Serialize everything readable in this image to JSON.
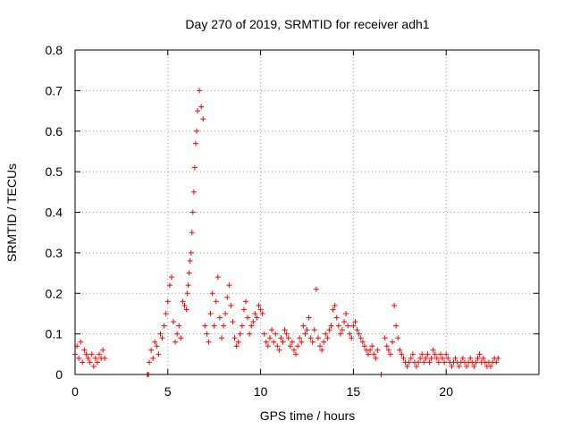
{
  "chart_data": {
    "type": "scatter",
    "title": "Day 270 of 2019, SRMTID for receiver adh1",
    "xlabel": "GPS time / hours",
    "ylabel": "SRMTID / TECUs",
    "xlim": [
      0,
      25
    ],
    "ylim": [
      0,
      0.8
    ],
    "xticks": [
      0,
      5,
      10,
      15,
      20
    ],
    "yticks": [
      0,
      0.1,
      0.2,
      0.3,
      0.4,
      0.5,
      0.6,
      0.7,
      0.8
    ],
    "xtick_labels": [
      "0",
      "5",
      "10",
      "15",
      "20"
    ],
    "ytick_labels": [
      "0",
      "0.1",
      "0.2",
      "0.3",
      "0.4",
      "0.5",
      "0.6",
      "0.7",
      "0.8"
    ],
    "grid": true,
    "marker": "+",
    "color": "#ff0000",
    "series": [
      {
        "name": "adh1",
        "x": [
          0.0,
          0.1,
          0.2,
          0.3,
          0.4,
          0.5,
          0.6,
          0.7,
          0.8,
          0.9,
          1.0,
          1.1,
          1.2,
          1.3,
          1.4,
          1.5,
          1.6,
          3.9,
          3.95,
          4.0,
          4.1,
          4.2,
          4.3,
          4.4,
          4.5,
          4.6,
          4.7,
          4.8,
          4.9,
          5.0,
          5.1,
          5.2,
          5.3,
          5.4,
          5.5,
          5.6,
          5.7,
          5.8,
          5.9,
          6.0,
          6.05,
          6.1,
          6.15,
          6.2,
          6.25,
          6.3,
          6.35,
          6.4,
          6.45,
          6.5,
          6.55,
          6.6,
          6.7,
          6.8,
          6.9,
          7.0,
          7.1,
          7.2,
          7.3,
          7.4,
          7.5,
          7.6,
          7.7,
          7.8,
          7.9,
          8.0,
          8.1,
          8.2,
          8.3,
          8.4,
          8.5,
          8.6,
          8.7,
          8.8,
          8.9,
          9.0,
          9.1,
          9.2,
          9.3,
          9.4,
          9.5,
          9.6,
          9.7,
          9.8,
          9.9,
          10.0,
          10.1,
          10.2,
          10.3,
          10.4,
          10.5,
          10.6,
          10.7,
          10.8,
          10.9,
          11.0,
          11.1,
          11.2,
          11.3,
          11.4,
          11.5,
          11.6,
          11.7,
          11.8,
          11.9,
          12.0,
          12.1,
          12.2,
          12.3,
          12.4,
          12.5,
          12.6,
          12.7,
          12.8,
          12.9,
          13.0,
          13.1,
          13.2,
          13.3,
          13.4,
          13.5,
          13.6,
          13.7,
          13.8,
          13.9,
          14.0,
          14.1,
          14.2,
          14.3,
          14.4,
          14.5,
          14.6,
          14.7,
          14.8,
          14.9,
          15.0,
          15.1,
          15.2,
          15.3,
          15.4,
          15.5,
          15.6,
          15.7,
          15.8,
          15.9,
          16.0,
          16.1,
          16.2,
          16.3,
          16.5,
          16.7,
          16.8,
          16.9,
          17.0,
          17.1,
          17.2,
          17.3,
          17.4,
          17.5,
          17.6,
          17.7,
          17.8,
          17.9,
          18.0,
          18.1,
          18.2,
          18.3,
          18.4,
          18.5,
          18.6,
          18.7,
          18.8,
          18.9,
          19.0,
          19.1,
          19.2,
          19.3,
          19.4,
          19.5,
          19.6,
          19.7,
          19.8,
          19.9,
          20.0,
          20.1,
          20.2,
          20.3,
          20.4,
          20.5,
          20.6,
          20.7,
          20.8,
          20.9,
          21.0,
          21.1,
          21.2,
          21.3,
          21.4,
          21.5,
          21.6,
          21.7,
          21.8,
          21.9,
          22.0,
          22.1,
          22.2,
          22.3,
          22.4,
          22.5,
          22.6,
          22.7,
          22.8
        ],
        "y": [
          0.05,
          0.07,
          0.04,
          0.08,
          0.03,
          0.06,
          0.05,
          0.04,
          0.03,
          0.05,
          0.02,
          0.04,
          0.03,
          0.05,
          0.04,
          0.06,
          0.04,
          0.0,
          0.0,
          0.03,
          0.06,
          0.04,
          0.08,
          0.07,
          0.05,
          0.1,
          0.09,
          0.12,
          0.15,
          0.18,
          0.22,
          0.24,
          0.13,
          0.08,
          0.1,
          0.12,
          0.09,
          0.18,
          0.17,
          0.16,
          0.2,
          0.22,
          0.25,
          0.28,
          0.3,
          0.35,
          0.4,
          0.45,
          0.51,
          0.57,
          0.6,
          0.65,
          0.7,
          0.66,
          0.63,
          0.12,
          0.1,
          0.08,
          0.15,
          0.2,
          0.12,
          0.18,
          0.24,
          0.14,
          0.09,
          0.12,
          0.15,
          0.19,
          0.22,
          0.17,
          0.13,
          0.09,
          0.07,
          0.08,
          0.1,
          0.12,
          0.16,
          0.18,
          0.14,
          0.1,
          0.12,
          0.13,
          0.15,
          0.14,
          0.17,
          0.16,
          0.15,
          0.1,
          0.08,
          0.07,
          0.09,
          0.11,
          0.08,
          0.1,
          0.07,
          0.06,
          0.09,
          0.08,
          0.11,
          0.1,
          0.09,
          0.07,
          0.08,
          0.06,
          0.05,
          0.07,
          0.09,
          0.08,
          0.12,
          0.1,
          0.11,
          0.14,
          0.09,
          0.08,
          0.11,
          0.21,
          0.09,
          0.07,
          0.06,
          0.08,
          0.1,
          0.09,
          0.11,
          0.12,
          0.16,
          0.17,
          0.14,
          0.12,
          0.1,
          0.11,
          0.13,
          0.15,
          0.12,
          0.1,
          0.09,
          0.12,
          0.13,
          0.11,
          0.1,
          0.09,
          0.08,
          0.07,
          0.06,
          0.05,
          0.06,
          0.07,
          0.05,
          0.04,
          0.06,
          0.0,
          0.09,
          0.07,
          0.06,
          0.05,
          0.08,
          0.17,
          0.12,
          0.09,
          0.06,
          0.05,
          0.04,
          0.03,
          0.02,
          0.03,
          0.04,
          0.05,
          0.03,
          0.02,
          0.03,
          0.04,
          0.05,
          0.03,
          0.04,
          0.05,
          0.03,
          0.04,
          0.06,
          0.05,
          0.04,
          0.03,
          0.05,
          0.04,
          0.03,
          0.05,
          0.04,
          0.03,
          0.02,
          0.03,
          0.04,
          0.03,
          0.02,
          0.03,
          0.04,
          0.03,
          0.02,
          0.03,
          0.04,
          0.03,
          0.02,
          0.03,
          0.04,
          0.05,
          0.03,
          0.04,
          0.03,
          0.02,
          0.03,
          0.02,
          0.03,
          0.04,
          0.03,
          0.04
        ]
      }
    ]
  }
}
